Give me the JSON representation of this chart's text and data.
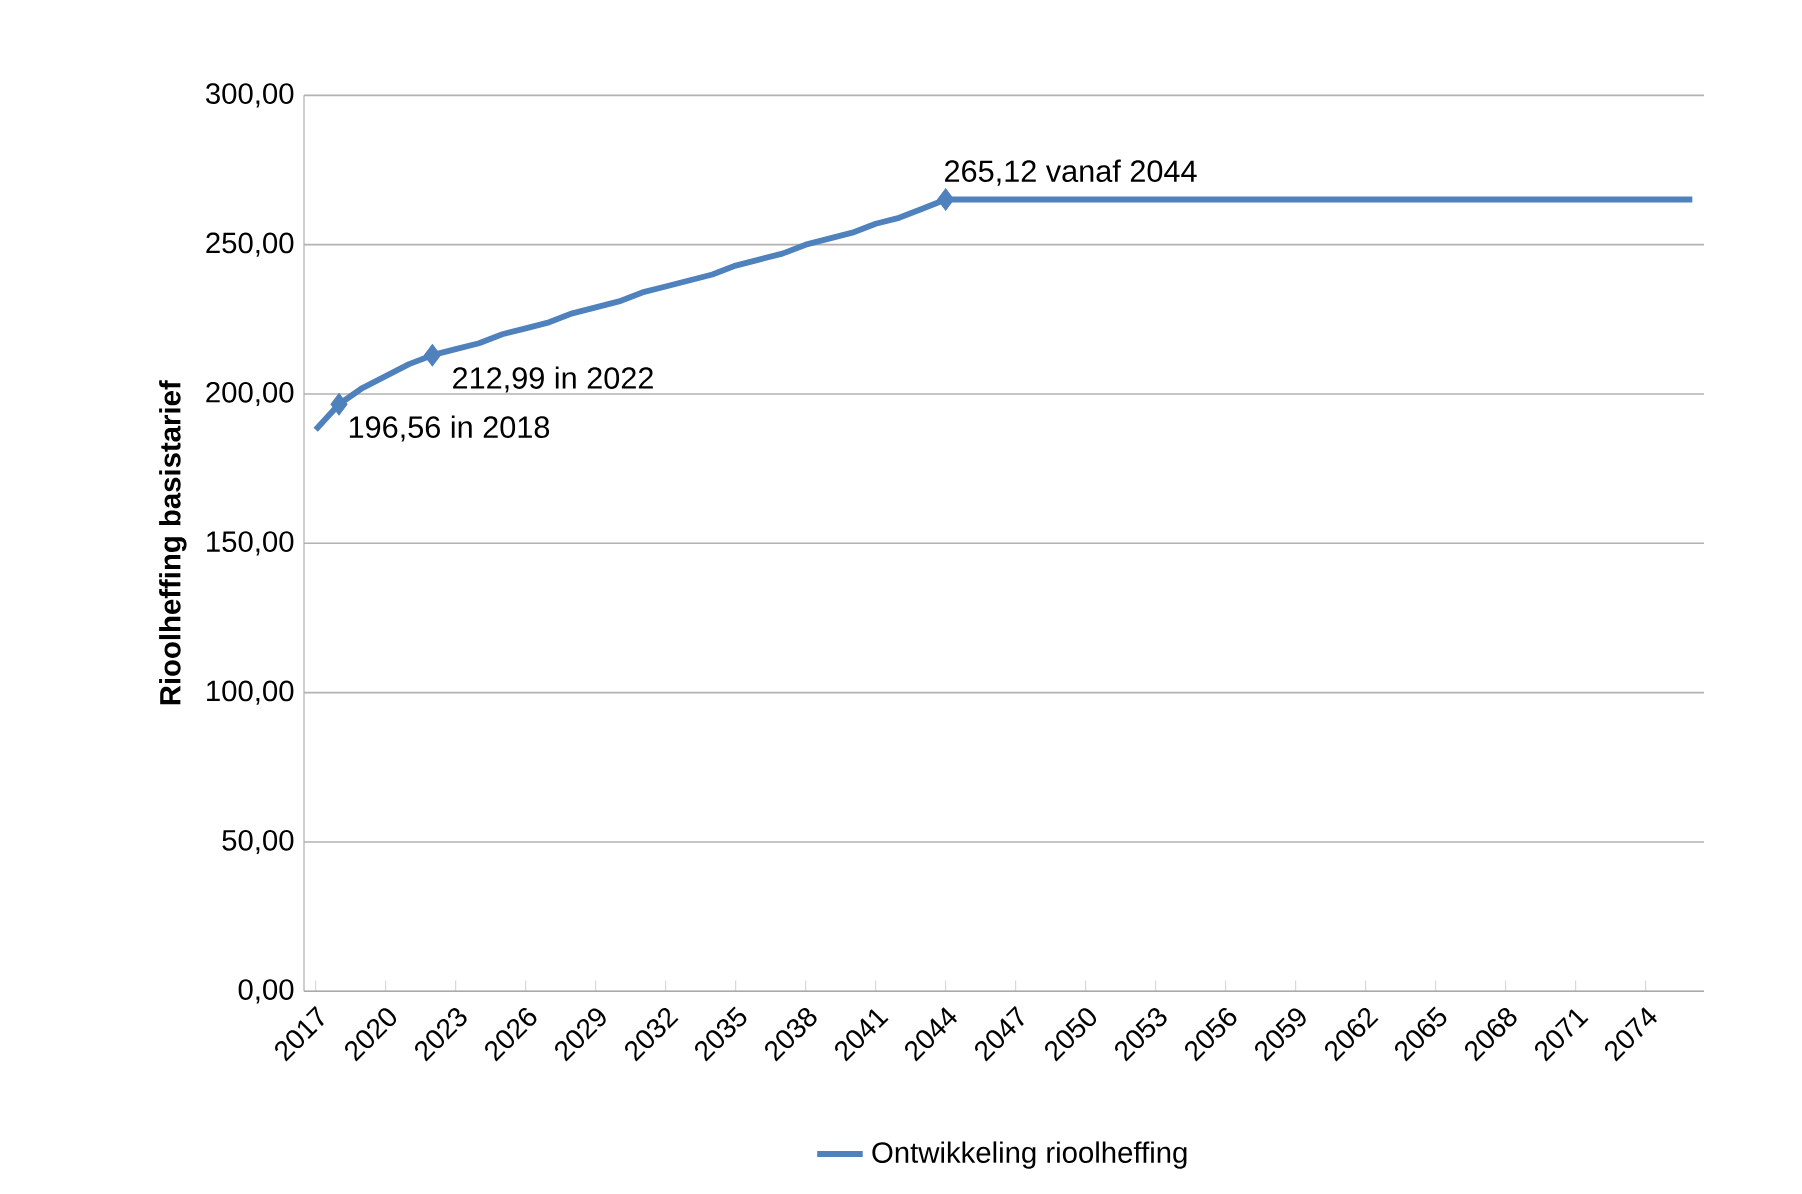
{
  "chart_data": {
    "type": "line",
    "ylabel": "Rioolheffing basistarief",
    "xlim": [
      2016.5,
      2076.5
    ],
    "xticks": [
      2017,
      2020,
      2023,
      2026,
      2029,
      2032,
      2035,
      2038,
      2041,
      2044,
      2047,
      2050,
      2053,
      2056,
      2059,
      2062,
      2065,
      2068,
      2071,
      2074
    ],
    "ylim": [
      0,
      300
    ],
    "yticks": [
      {
        "value": 0,
        "label": "0,00"
      },
      {
        "value": 50,
        "label": "50,00"
      },
      {
        "value": 100,
        "label": "100,00"
      },
      {
        "value": 150,
        "label": "150,00"
      },
      {
        "value": 200,
        "label": "200,00"
      },
      {
        "value": 250,
        "label": "250,00"
      },
      {
        "value": 300,
        "label": "300,00"
      }
    ],
    "grid": "y",
    "legend": "bottom",
    "series": [
      {
        "name": "Ontwikkeling rioolheffing",
        "marker": "none",
        "color": "#4f81bd",
        "x": [
          2017,
          2018,
          2019,
          2020,
          2021,
          2022,
          2023,
          2024,
          2025,
          2026,
          2027,
          2028,
          2029,
          2030,
          2031,
          2032,
          2033,
          2034,
          2035,
          2036,
          2037,
          2038,
          2039,
          2040,
          2041,
          2042,
          2043,
          2044,
          2050,
          2060,
          2070,
          2076
        ],
        "values": [
          188,
          196.56,
          202,
          206,
          210,
          212.99,
          215,
          217,
          220,
          222,
          224,
          227,
          229,
          231,
          234,
          236,
          238,
          240,
          243,
          245,
          247,
          250,
          252,
          254,
          257,
          259,
          262,
          265.12,
          265.12,
          265.12,
          265.12,
          265.12
        ]
      },
      {
        "type": "scatter",
        "marker": "diamond",
        "color": "#4f81bd",
        "x": [
          2018,
          2022,
          2044
        ],
        "values": [
          196.56,
          212.99,
          265.12
        ]
      }
    ],
    "annotations": [
      {
        "text": "196,56 in 2018",
        "x": 2018,
        "y": 196.56
      },
      {
        "text": "212,99 in 2022",
        "x": 2022,
        "y": 212.99
      },
      {
        "text": "265,12 vanaf 2044",
        "x": 2044,
        "y": 265.12
      }
    ]
  }
}
